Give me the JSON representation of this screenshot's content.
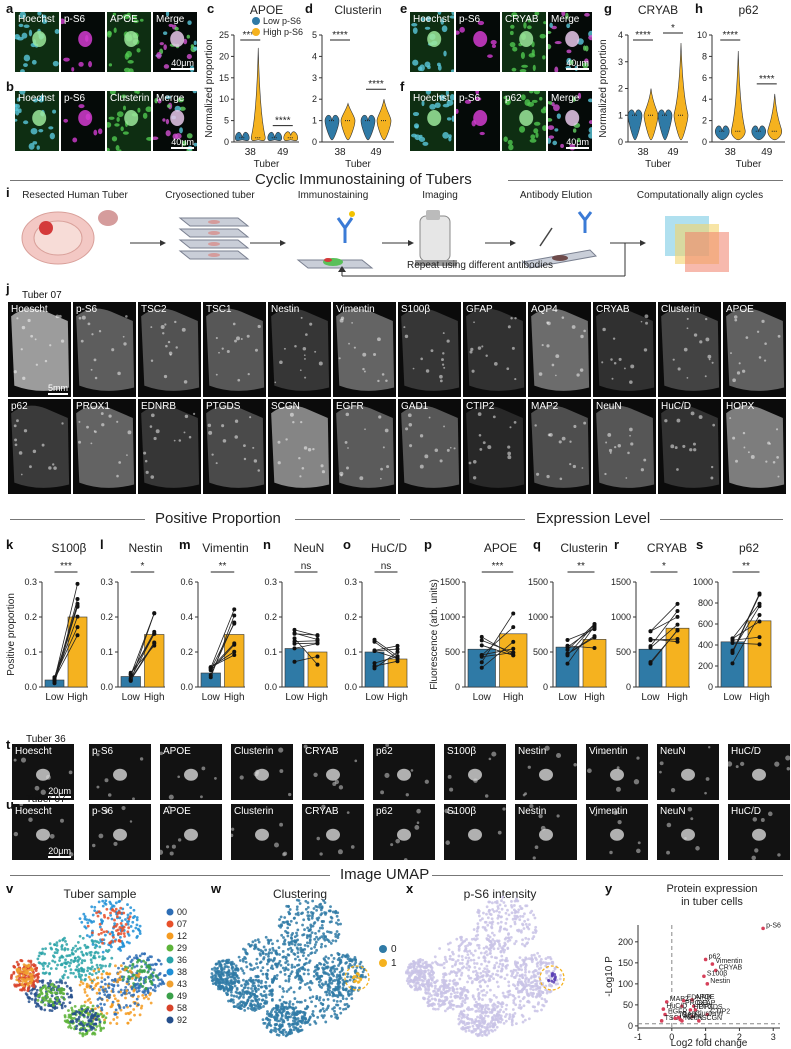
{
  "labels": {
    "a": "a",
    "b": "b",
    "c": "c",
    "d": "d",
    "e": "e",
    "f": "f",
    "g": "g",
    "h": "h",
    "i": "i",
    "j": "j",
    "k": "k",
    "l": "l",
    "m": "m",
    "n": "n",
    "o": "o",
    "p": "p",
    "q": "q",
    "r": "r",
    "s": "s",
    "t": "t",
    "u": "u",
    "v": "v",
    "w": "w",
    "x": "x",
    "y": "y"
  },
  "strip_a": {
    "channels": [
      "Hoechst",
      "p-S6",
      "APOE",
      "Merge"
    ],
    "scale": "40μm"
  },
  "strip_b": {
    "channels": [
      "Hoechst",
      "p-S6",
      "Clusterin",
      "Merge"
    ],
    "scale": "40μm"
  },
  "strip_e": {
    "channels": [
      "Hoechst",
      "p-S6",
      "CRYAB",
      "Merge"
    ],
    "scale": "40μm"
  },
  "strip_f": {
    "channels": [
      "Hoechst",
      "p-S6",
      "p62",
      "Merge"
    ],
    "scale": "40μm"
  },
  "section_cyclic": "Cyclic Immunostaining of Tubers",
  "workflow": {
    "steps": [
      "Resected Human Tuber",
      "Cryosectioned tuber",
      "Immunostaining",
      "Imaging",
      "Antibody Elution",
      "Computationally align cycles"
    ],
    "repeat": "Repeat using different antibodies"
  },
  "panel_j": {
    "tuber": "Tuber 07",
    "row1": [
      "Hoescht",
      "p-S6",
      "TSC2",
      "TSC1",
      "Nestin",
      "Vimentin",
      "S100β",
      "GFAP",
      "AQP4",
      "CRYAB",
      "Clusterin",
      "APOE"
    ],
    "row2": [
      "p62",
      "PROX1",
      "EDNRB",
      "PTGDS",
      "SCGN",
      "EGFR",
      "GAD1",
      "CTIP2",
      "MAP2",
      "NeuN",
      "HuC/D",
      "HOPX"
    ],
    "scale": "5mm"
  },
  "section_positive": "Positive Proportion",
  "section_expression": "Expression Level",
  "section_umap": "Image UMAP",
  "panel_t": {
    "tuber": "Tuber 36",
    "channels": [
      "Hoescht",
      "p-S6",
      "APOE",
      "Clusterin",
      "CRYAB",
      "p62",
      "S100β",
      "Nestin",
      "Vimentin",
      "NeuN",
      "HuC/D"
    ],
    "scale": "20μm"
  },
  "panel_u": {
    "tuber": "Tuber 07",
    "channels": [
      "Hoescht",
      "p-S6",
      "APOE",
      "Clusterin",
      "CRYAB",
      "p62",
      "S100β",
      "Nestin",
      "Vimentin",
      "NeuN",
      "HuC/D"
    ],
    "scale": "20μm"
  },
  "colors": {
    "low": "#2f7aa6",
    "high": "#f5b21f",
    "umap_blue": "#2f7aa6",
    "umap_orange": "#f5b21f",
    "sig": "#d6405a",
    "lavender": "#c9c3e6"
  },
  "chart_data": [
    {
      "panel": "c",
      "type": "violin",
      "title": "APOE",
      "ylabel": "Normalized proportion",
      "xlabel": "Tuber",
      "categories": [
        "38",
        "49"
      ],
      "legend": [
        "Low p-S6",
        "High p-S6"
      ],
      "ylim": [
        0,
        25
      ],
      "yticks": [
        0,
        5,
        10,
        15,
        20,
        25
      ],
      "series": [
        {
          "name": "Low p-S6",
          "values": [
            1.0,
            1.0
          ]
        },
        {
          "name": "High p-S6",
          "values": [
            22,
            1.5
          ]
        }
      ],
      "annotations": [
        "****",
        "****"
      ]
    },
    {
      "panel": "d",
      "type": "violin",
      "title": "Clusterin",
      "xlabel": "Tuber",
      "categories": [
        "38",
        "49"
      ],
      "ylim": [
        0,
        5
      ],
      "yticks": [
        0,
        1,
        2,
        3,
        4,
        5
      ],
      "series": [
        {
          "name": "Low p-S6",
          "values": [
            1.0,
            1.0
          ]
        },
        {
          "name": "High p-S6",
          "values": [
            1.8,
            2.0
          ]
        }
      ],
      "annotations": [
        "****",
        "****"
      ]
    },
    {
      "panel": "g",
      "type": "violin",
      "title": "CRYAB",
      "ylabel": "Normalized proportion",
      "xlabel": "Tuber",
      "categories": [
        "38",
        "49"
      ],
      "ylim": [
        0,
        4
      ],
      "yticks": [
        0,
        1,
        2,
        3,
        4
      ],
      "series": [
        {
          "name": "Low p-S6",
          "values": [
            1.0,
            1.0
          ]
        },
        {
          "name": "High p-S6",
          "values": [
            2.0,
            3.7
          ]
        }
      ],
      "annotations": [
        "****",
        "*"
      ]
    },
    {
      "panel": "h",
      "type": "violin",
      "title": "p62",
      "xlabel": "Tuber",
      "categories": [
        "38",
        "49"
      ],
      "ylim": [
        0,
        10
      ],
      "yticks": [
        0,
        2,
        4,
        6,
        8,
        10
      ],
      "series": [
        {
          "name": "Low p-S6",
          "values": [
            1.0,
            1.0
          ]
        },
        {
          "name": "High p-S6",
          "values": [
            8.5,
            4.5
          ]
        }
      ],
      "annotations": [
        "****",
        "****"
      ]
    },
    {
      "panel": "k",
      "type": "bar",
      "title": "S100β",
      "ylabel": "Positive proportion",
      "categories": [
        "Low",
        "High"
      ],
      "values": [
        0.02,
        0.2
      ],
      "ylim": [
        0,
        0.3
      ],
      "yticks": [
        "0.0",
        "0.1",
        "0.2",
        "0.3"
      ],
      "sig": "***"
    },
    {
      "panel": "l",
      "type": "bar",
      "title": "Nestin",
      "categories": [
        "Low",
        "High"
      ],
      "values": [
        0.03,
        0.15
      ],
      "ylim": [
        0,
        0.3
      ],
      "yticks": [
        "0.0",
        "0.1",
        "0.2",
        "0.3"
      ],
      "sig": "*"
    },
    {
      "panel": "m",
      "type": "bar",
      "title": "Vimentin",
      "categories": [
        "Low",
        "High"
      ],
      "values": [
        0.08,
        0.3
      ],
      "ylim": [
        0,
        0.6
      ],
      "yticks": [
        "0.0",
        "0.2",
        "0.4",
        "0.6"
      ],
      "sig": "**"
    },
    {
      "panel": "n",
      "type": "bar",
      "title": "NeuN",
      "categories": [
        "Low",
        "High"
      ],
      "values": [
        0.11,
        0.1
      ],
      "ylim": [
        0,
        0.3
      ],
      "yticks": [
        "0.0",
        "0.1",
        "0.2",
        "0.3"
      ],
      "sig": "ns"
    },
    {
      "panel": "o",
      "type": "bar",
      "title": "HuC/D",
      "categories": [
        "Low",
        "High"
      ],
      "values": [
        0.1,
        0.08
      ],
      "ylim": [
        0,
        0.3
      ],
      "yticks": [
        "0.0",
        "0.1",
        "0.2",
        "0.3"
      ],
      "sig": "ns"
    },
    {
      "panel": "p",
      "type": "bar",
      "title": "APOE",
      "ylabel": "Fluorescence (arb. units)",
      "categories": [
        "Low",
        "High"
      ],
      "values": [
        540,
        760
      ],
      "ylim": [
        0,
        1500
      ],
      "yticks": [
        "0",
        "500",
        "1000",
        "1500"
      ],
      "sig": "***"
    },
    {
      "panel": "q",
      "type": "bar",
      "title": "Clusterin",
      "categories": [
        "Low",
        "High"
      ],
      "values": [
        570,
        680
      ],
      "ylim": [
        0,
        1500
      ],
      "yticks": [
        "0",
        "500",
        "1000",
        "1500"
      ],
      "sig": "**"
    },
    {
      "panel": "r",
      "type": "bar",
      "title": "CRYAB",
      "categories": [
        "Low",
        "High"
      ],
      "values": [
        540,
        840
      ],
      "ylim": [
        0,
        1500
      ],
      "yticks": [
        "0",
        "500",
        "1000",
        "1500"
      ],
      "sig": "*"
    },
    {
      "panel": "s",
      "type": "bar",
      "title": "p62",
      "categories": [
        "Low",
        "High"
      ],
      "values": [
        430,
        630
      ],
      "ylim": [
        0,
        1000
      ],
      "yticks": [
        "0",
        "200",
        "400",
        "600",
        "800",
        "1000"
      ],
      "sig": "**"
    },
    {
      "panel": "v",
      "type": "scatter",
      "title": "Tuber sample",
      "legend": [
        "00",
        "07",
        "12",
        "29",
        "36",
        "38",
        "43",
        "49",
        "58",
        "92"
      ],
      "colors": [
        "#2d6db5",
        "#e8502a",
        "#f59b20",
        "#5db33a",
        "#2aa3a8",
        "#1f8fd6",
        "#f0a030",
        "#3aa04a",
        "#d8432a",
        "#254f8c"
      ]
    },
    {
      "panel": "w",
      "type": "scatter",
      "title": "Clustering",
      "legend": [
        "0",
        "1"
      ]
    },
    {
      "panel": "x",
      "type": "scatter",
      "title": "p-S6 intensity"
    },
    {
      "panel": "y",
      "type": "scatter",
      "title": "Protein expression in tuber cells",
      "ylabel": "-Log10 P",
      "xlabel": "Log2 fold change",
      "xlim": [
        -1,
        3.2
      ],
      "ylim": [
        -5,
        240
      ],
      "xticks": [
        -1,
        0,
        1,
        2,
        3
      ],
      "yticks": [
        0,
        50,
        100,
        150,
        200
      ],
      "points": [
        {
          "name": "p-S6",
          "x": 2.7,
          "y": 232
        },
        {
          "name": "p62",
          "x": 1.0,
          "y": 158
        },
        {
          "name": "Vimentin",
          "x": 1.2,
          "y": 147
        },
        {
          "name": "CRYAB",
          "x": 1.3,
          "y": 132
        },
        {
          "name": "S100β",
          "x": 0.95,
          "y": 118
        },
        {
          "name": "Nestin",
          "x": 1.05,
          "y": 100
        },
        {
          "name": "APOE",
          "x": 0.6,
          "y": 62
        },
        {
          "name": "EDNRB",
          "x": 0.35,
          "y": 60
        },
        {
          "name": "MAP2",
          "x": -0.15,
          "y": 57
        },
        {
          "name": "GFAP",
          "x": 0.65,
          "y": 47
        },
        {
          "name": "PROX1",
          "x": 0.3,
          "y": 47
        },
        {
          "name": "HuC/D",
          "x": -0.25,
          "y": 40
        },
        {
          "name": "PTGDS",
          "x": 0.7,
          "y": 38
        },
        {
          "name": "HOPX",
          "x": 0.55,
          "y": 38
        },
        {
          "name": "EGFR",
          "x": -0.2,
          "y": 27
        },
        {
          "name": "CTIP2",
          "x": 1.05,
          "y": 27
        },
        {
          "name": "Clusterin",
          "x": 0.6,
          "y": 22
        },
        {
          "name": "TSC1",
          "x": -0.3,
          "y": 12
        },
        {
          "name": "NeuN",
          "x": 0.3,
          "y": 12
        },
        {
          "name": "SCGN",
          "x": 0.8,
          "y": 12
        },
        {
          "name": "GAD1",
          "x": 0.2,
          "y": 20
        },
        {
          "name": "TSC2",
          "x": 0.1,
          "y": 18
        },
        {
          "name": "AQP4",
          "x": 0.25,
          "y": 15
        }
      ]
    }
  ]
}
